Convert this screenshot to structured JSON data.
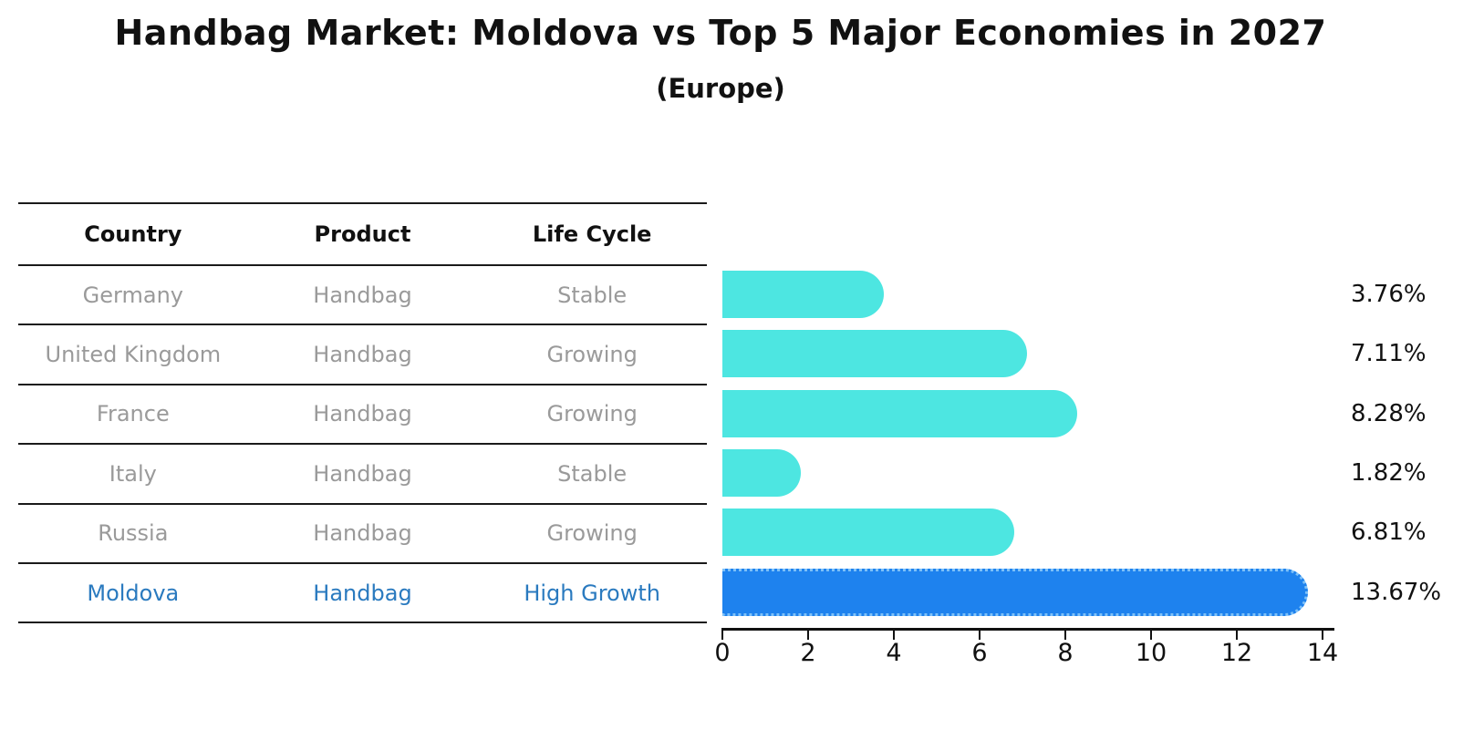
{
  "title": "Handbag Market: Moldova vs Top 5 Major Economies in 2027",
  "subtitle": "(Europe)",
  "table": {
    "headers": [
      "Country",
      "Product",
      "Life Cycle"
    ],
    "rows": [
      {
        "country": "Germany",
        "product": "Handbag",
        "life_cycle": "Stable"
      },
      {
        "country": "United Kingdom",
        "product": "Handbag",
        "life_cycle": "Growing"
      },
      {
        "country": "France",
        "product": "Handbag",
        "life_cycle": "Growing"
      },
      {
        "country": "Italy",
        "product": "Handbag",
        "life_cycle": "Stable"
      },
      {
        "country": "Russia",
        "product": "Handbag",
        "life_cycle": "Growing"
      },
      {
        "country": "Moldova",
        "product": "Handbag",
        "life_cycle": "High Growth"
      }
    ],
    "highlight_row": "Moldova"
  },
  "chart_data": {
    "type": "bar",
    "orientation": "horizontal",
    "categories": [
      "Germany",
      "United Kingdom",
      "France",
      "Italy",
      "Russia",
      "Moldova"
    ],
    "values": [
      3.76,
      7.11,
      8.28,
      1.82,
      6.81,
      13.67
    ],
    "value_labels": [
      "3.76%",
      "7.11%",
      "8.28%",
      "1.82%",
      "6.81%",
      "13.67%"
    ],
    "xlim": [
      0,
      14
    ],
    "xticks": [
      0,
      2,
      4,
      6,
      8,
      10,
      12,
      14
    ],
    "grid": false,
    "legend": false,
    "bar_color": "#4de6e1",
    "highlight_bar_color": "#1e82ee",
    "highlight_index": 5,
    "highlight_text_color": "#2a7abf",
    "title": "Handbag Market: Moldova vs Top 5 Major Economies in 2027",
    "subtitle": "(Europe)"
  }
}
